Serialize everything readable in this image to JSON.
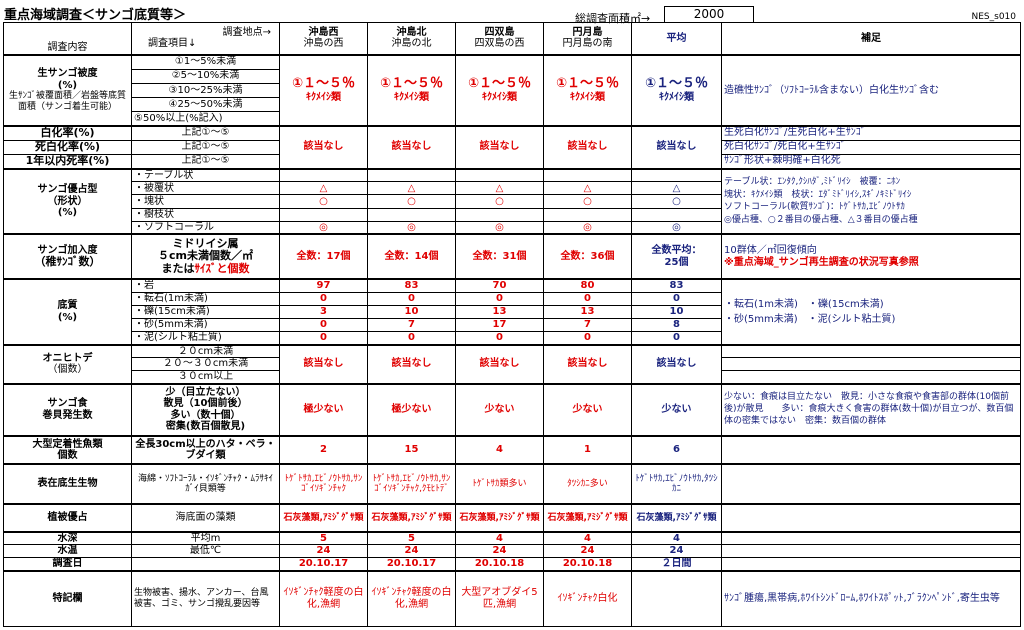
{
  "header": {
    "title": "重点海域調査＜サンゴ底質等＞",
    "survey_area_label": "総調査面積㎡→",
    "survey_area_value": "2000",
    "sheet_code": "NES_s010"
  },
  "columns": {
    "left_header": "調査内容",
    "mid_header_a": "調査地点→",
    "mid_header_b": "調査項目↓",
    "sites": [
      {
        "name": "沖島西",
        "sub": "沖島の西"
      },
      {
        "name": "沖島北",
        "sub": "沖島の北"
      },
      {
        "name": "四双島",
        "sub": "四双島の西"
      },
      {
        "name": "円月島",
        "sub": "円月島の南"
      }
    ],
    "avg": "平均",
    "notes": "補足"
  },
  "live_coral": {
    "label": "生サンゴ被度",
    "unit": "(%)",
    "sub": "生ｻﾝｺﾞ被覆面積／岩盤等底質面積（サンゴ着生可能）",
    "items": [
      "①1～5%未満",
      "②5～10%未満",
      "③10～25%未満",
      "④25～50%未満",
      "⑤50%以上(%記入)"
    ],
    "values": [
      "①１～５％",
      "①１～５％",
      "①１～５％",
      "①１～５％",
      "①１～５％"
    ],
    "values_sub": [
      "ｷｸﾒｲｼ類",
      "ｷｸﾒｲｼ類",
      "ｷｸﾒｲｼ類",
      "ｷｸﾒｲｼ類",
      "ｷｸﾒｲｼ類"
    ],
    "note": "造礁性ｻﾝｺﾞ（ｿﾌﾄｺｰﾗﾙ含まない）白化生ｻﾝｺﾞ含む"
  },
  "bleach": {
    "rows": [
      {
        "label": "白化率(%)",
        "item": "上記①～⑤",
        "note": "生死白化ｻﾝｺﾞ/生死白化+生ｻﾝｺﾞ"
      },
      {
        "label": "死白化率(%)",
        "item": "上記①～⑤",
        "note": "死白化ｻﾝｺﾞ/死白化+生ｻﾝｺﾞ"
      },
      {
        "label": "1年以内死率(%)",
        "item": "上記①～⑤",
        "note": "ｻﾝｺﾞ形状+棘明確+白化死"
      }
    ],
    "values": [
      "該当なし",
      "該当なし",
      "該当なし",
      "該当なし",
      "該当なし"
    ]
  },
  "dominant": {
    "label": "サンゴ優占型",
    "label2": "（形状）",
    "unit": "(%)",
    "items": [
      "・テーブル状",
      "・被覆状",
      "・塊状",
      "・樹枝状",
      "・ソフトコーラル"
    ],
    "rows": [
      [
        "",
        "",
        "",
        "",
        ""
      ],
      [
        "△",
        "△",
        "△",
        "△",
        "△"
      ],
      [
        "○",
        "○",
        "○",
        "○",
        "○"
      ],
      [
        "",
        "",
        "",
        "",
        ""
      ],
      [
        "◎",
        "◎",
        "◎",
        "◎",
        "◎"
      ]
    ],
    "notes": [
      "テーブル状：ｴﾝﾀｸ,ｸｼﾊﾀﾞ,ﾐﾄﾞﾘｲｼ　被覆：ﾆﾎﾝ",
      "塊状：ｷｸﾒｲｼ類　枝状：ｴﾀﾞﾐﾄﾞﾘｲｼ,ｽｷﾞﾉｷﾐﾄﾞﾘｲｼ",
      "ソフトコーラル(軟質ｻﾝｺﾞ)：ﾄｹﾞﾄｻｶ,ｴﾋﾞﾉｳﾄｻｶ",
      "◎優占種、○２番目の優占種、△３番目の優占種"
    ]
  },
  "recruit": {
    "label": "サンゴ加入度",
    "label2": "（稚ｻﾝｺﾞ数）",
    "item1": "ミドリイシ属",
    "item2": "５cm未満個数／㎡",
    "item3a": "または",
    "item3b": "ｻｲｽﾞと個数",
    "values": [
      "全数：17個",
      "全数：14個",
      "全数：31個",
      "全数：36個"
    ],
    "avg_a": "全数平均：",
    "avg_b": "25個",
    "note1": "10群体／㎡回復傾向",
    "note2": "※重点海域_サンゴ再生調査の状況写真参照"
  },
  "substrate": {
    "label": "底質",
    "unit": "(%)",
    "items": [
      "・岩",
      "・転石(1m未満)",
      "・礫(15cm未満)",
      "・砂(5mm未満)",
      "・泥(シルト粘土質)"
    ],
    "rows": [
      [
        "97",
        "83",
        "70",
        "80",
        "83"
      ],
      [
        "0",
        "0",
        "0",
        "0",
        "0"
      ],
      [
        "3",
        "10",
        "13",
        "13",
        "10"
      ],
      [
        "0",
        "7",
        "17",
        "7",
        "8"
      ],
      [
        "0",
        "0",
        "0",
        "0",
        "0"
      ]
    ],
    "notes": [
      "・転石(1m未満)　・礫(15cm未満)",
      "・砂(5mm未満)　・泥(シルト粘土質)"
    ]
  },
  "starfish": {
    "label": "オニヒトデ",
    "label2": "（個数）",
    "items": [
      "２０cm未満",
      "２０～３０cm未満",
      "３０cm以上"
    ],
    "values": [
      "該当なし",
      "該当なし",
      "該当なし",
      "該当なし",
      "該当なし"
    ]
  },
  "snail": {
    "label": "サンゴ食",
    "label2": "巻貝発生数",
    "items": [
      "少（目立たない）",
      "散見（10個前後）",
      "多い（数十個）",
      "密集(数百個散見)"
    ],
    "values": [
      "極少ない",
      "極少ない",
      "少ない",
      "少ない",
      "少ない"
    ],
    "note": "少ない：食痕は目立たない　散見：小さな食痕や食害部の群体(10個前後)が散見　　多い：食痕大きく食害の群体(数十個)が目立つが、数百個体の密集ではない　密集：数百個の群体"
  },
  "fish": {
    "label": "大型定着性魚類",
    "label2": "個数",
    "item": "全長30cm以上のハタ・ベラ・ブダイ類",
    "values": [
      "2",
      "15",
      "4",
      "1",
      "6"
    ]
  },
  "benthos": {
    "label": "表在底生生物",
    "item": "海綿・ｿﾌﾄｺｰﾗﾙ・ｲｿｷﾞﾝﾁｬｸ・ﾑﾗｻｷｲｶﾞｲ貝類等",
    "values": [
      "ﾄｹﾞﾄｻｶ,ｴﾋﾞﾉｳﾄｻｶ,ｻﾝｺﾞｲｿｷﾞﾝﾁｬｸ",
      "ﾄｹﾞﾄｻｶ,ｴﾋﾞﾉｳﾄｻｶ,ｻﾝｺﾞｲｿｷﾞﾝﾁｬｸ,ｸﾓﾋﾄﾃﾞ",
      "ﾄｹﾞﾄｻｶ類多い",
      "ﾀﾂｼｶﾆ多い",
      "ﾄｹﾞﾄｻｶ,ｴﾋﾞﾉｳﾄｻｶ,ﾀﾂｼｶﾆ"
    ]
  },
  "vegetation": {
    "label": "植被優占",
    "item": "海底面の藻類",
    "values": [
      "石灰藻類,ｱﾐｼﾞｸﾞｻ類",
      "石灰藻類,ｱﾐｼﾞｸﾞｻ類",
      "石灰藻類,ｱﾐｼﾞｸﾞｻ類",
      "石灰藻類,ｱﾐｼﾞｸﾞｻ類",
      "石灰藻類,ｱﾐｼﾞｸﾞｻ類"
    ]
  },
  "depth": {
    "label": "水深",
    "item": "平均m",
    "values": [
      "5",
      "5",
      "4",
      "4",
      "4"
    ]
  },
  "temp": {
    "label": "水温",
    "item": "最低℃",
    "values": [
      "24",
      "24",
      "24",
      "24",
      "24"
    ]
  },
  "date": {
    "label": "調査日",
    "values": [
      "20.10.17",
      "20.10.17",
      "20.10.18",
      "20.10.18",
      "２日間"
    ]
  },
  "special": {
    "label": "特記欄",
    "item": "生物被害、揚水、アンカー、台風被害、ゴミ、サンゴ攪乱要因等",
    "values": [
      "ｲｿｷﾞﾝﾁｬｸ軽度の白化,漁網",
      "ｲｿｷﾞﾝﾁｬｸ軽度の白化,漁網",
      "大型アオブダイ5匹,漁網",
      "ｲｿｷﾞﾝﾁｬｸ白化",
      ""
    ],
    "note": "ｻﾝｺﾞ腫瘍,黒帯病,ﾎﾜｲﾄｼﾝﾄﾞﾛｰﾑ,ﾎﾜｲﾄｽﾎﾟｯﾄ,ﾌﾞﾗｸﾝﾍﾟﾝﾄﾞ,寄生虫等"
  }
}
